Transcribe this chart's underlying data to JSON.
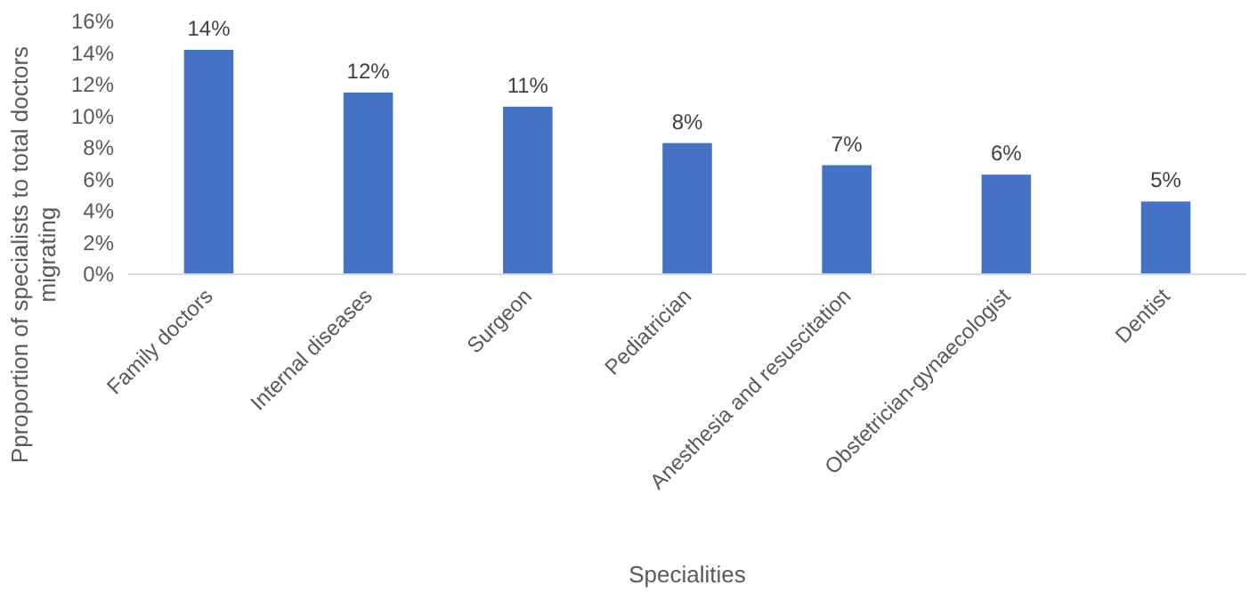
{
  "chart_data": {
    "type": "bar",
    "xlabel": "Specialities",
    "ylabel": "Pproportion of specialists to total doctors migrating",
    "categories": [
      "Family doctors",
      "Internal diseases",
      "Surgeon",
      "Pediatrician",
      "Anesthesia and resuscitation",
      "Obstetrician-gynaecologist",
      "Dentist"
    ],
    "values": [
      14.2,
      11.5,
      10.6,
      8.3,
      6.9,
      6.3,
      4.6
    ],
    "value_labels": [
      "14%",
      "12%",
      "11%",
      "8%",
      "7%",
      "6%",
      "5%"
    ],
    "color": "#4472c4",
    "ylim": [
      0,
      16
    ],
    "yticks": [
      {
        "value": 0,
        "label": "0%"
      },
      {
        "value": 2,
        "label": "2%"
      },
      {
        "value": 4,
        "label": "4%"
      },
      {
        "value": 6,
        "label": "6%"
      },
      {
        "value": 8,
        "label": "8%"
      },
      {
        "value": 10,
        "label": "10%"
      },
      {
        "value": 12,
        "label": "12%"
      },
      {
        "value": 14,
        "label": "14%"
      },
      {
        "value": 16,
        "label": "16%"
      }
    ],
    "grid": false
  }
}
